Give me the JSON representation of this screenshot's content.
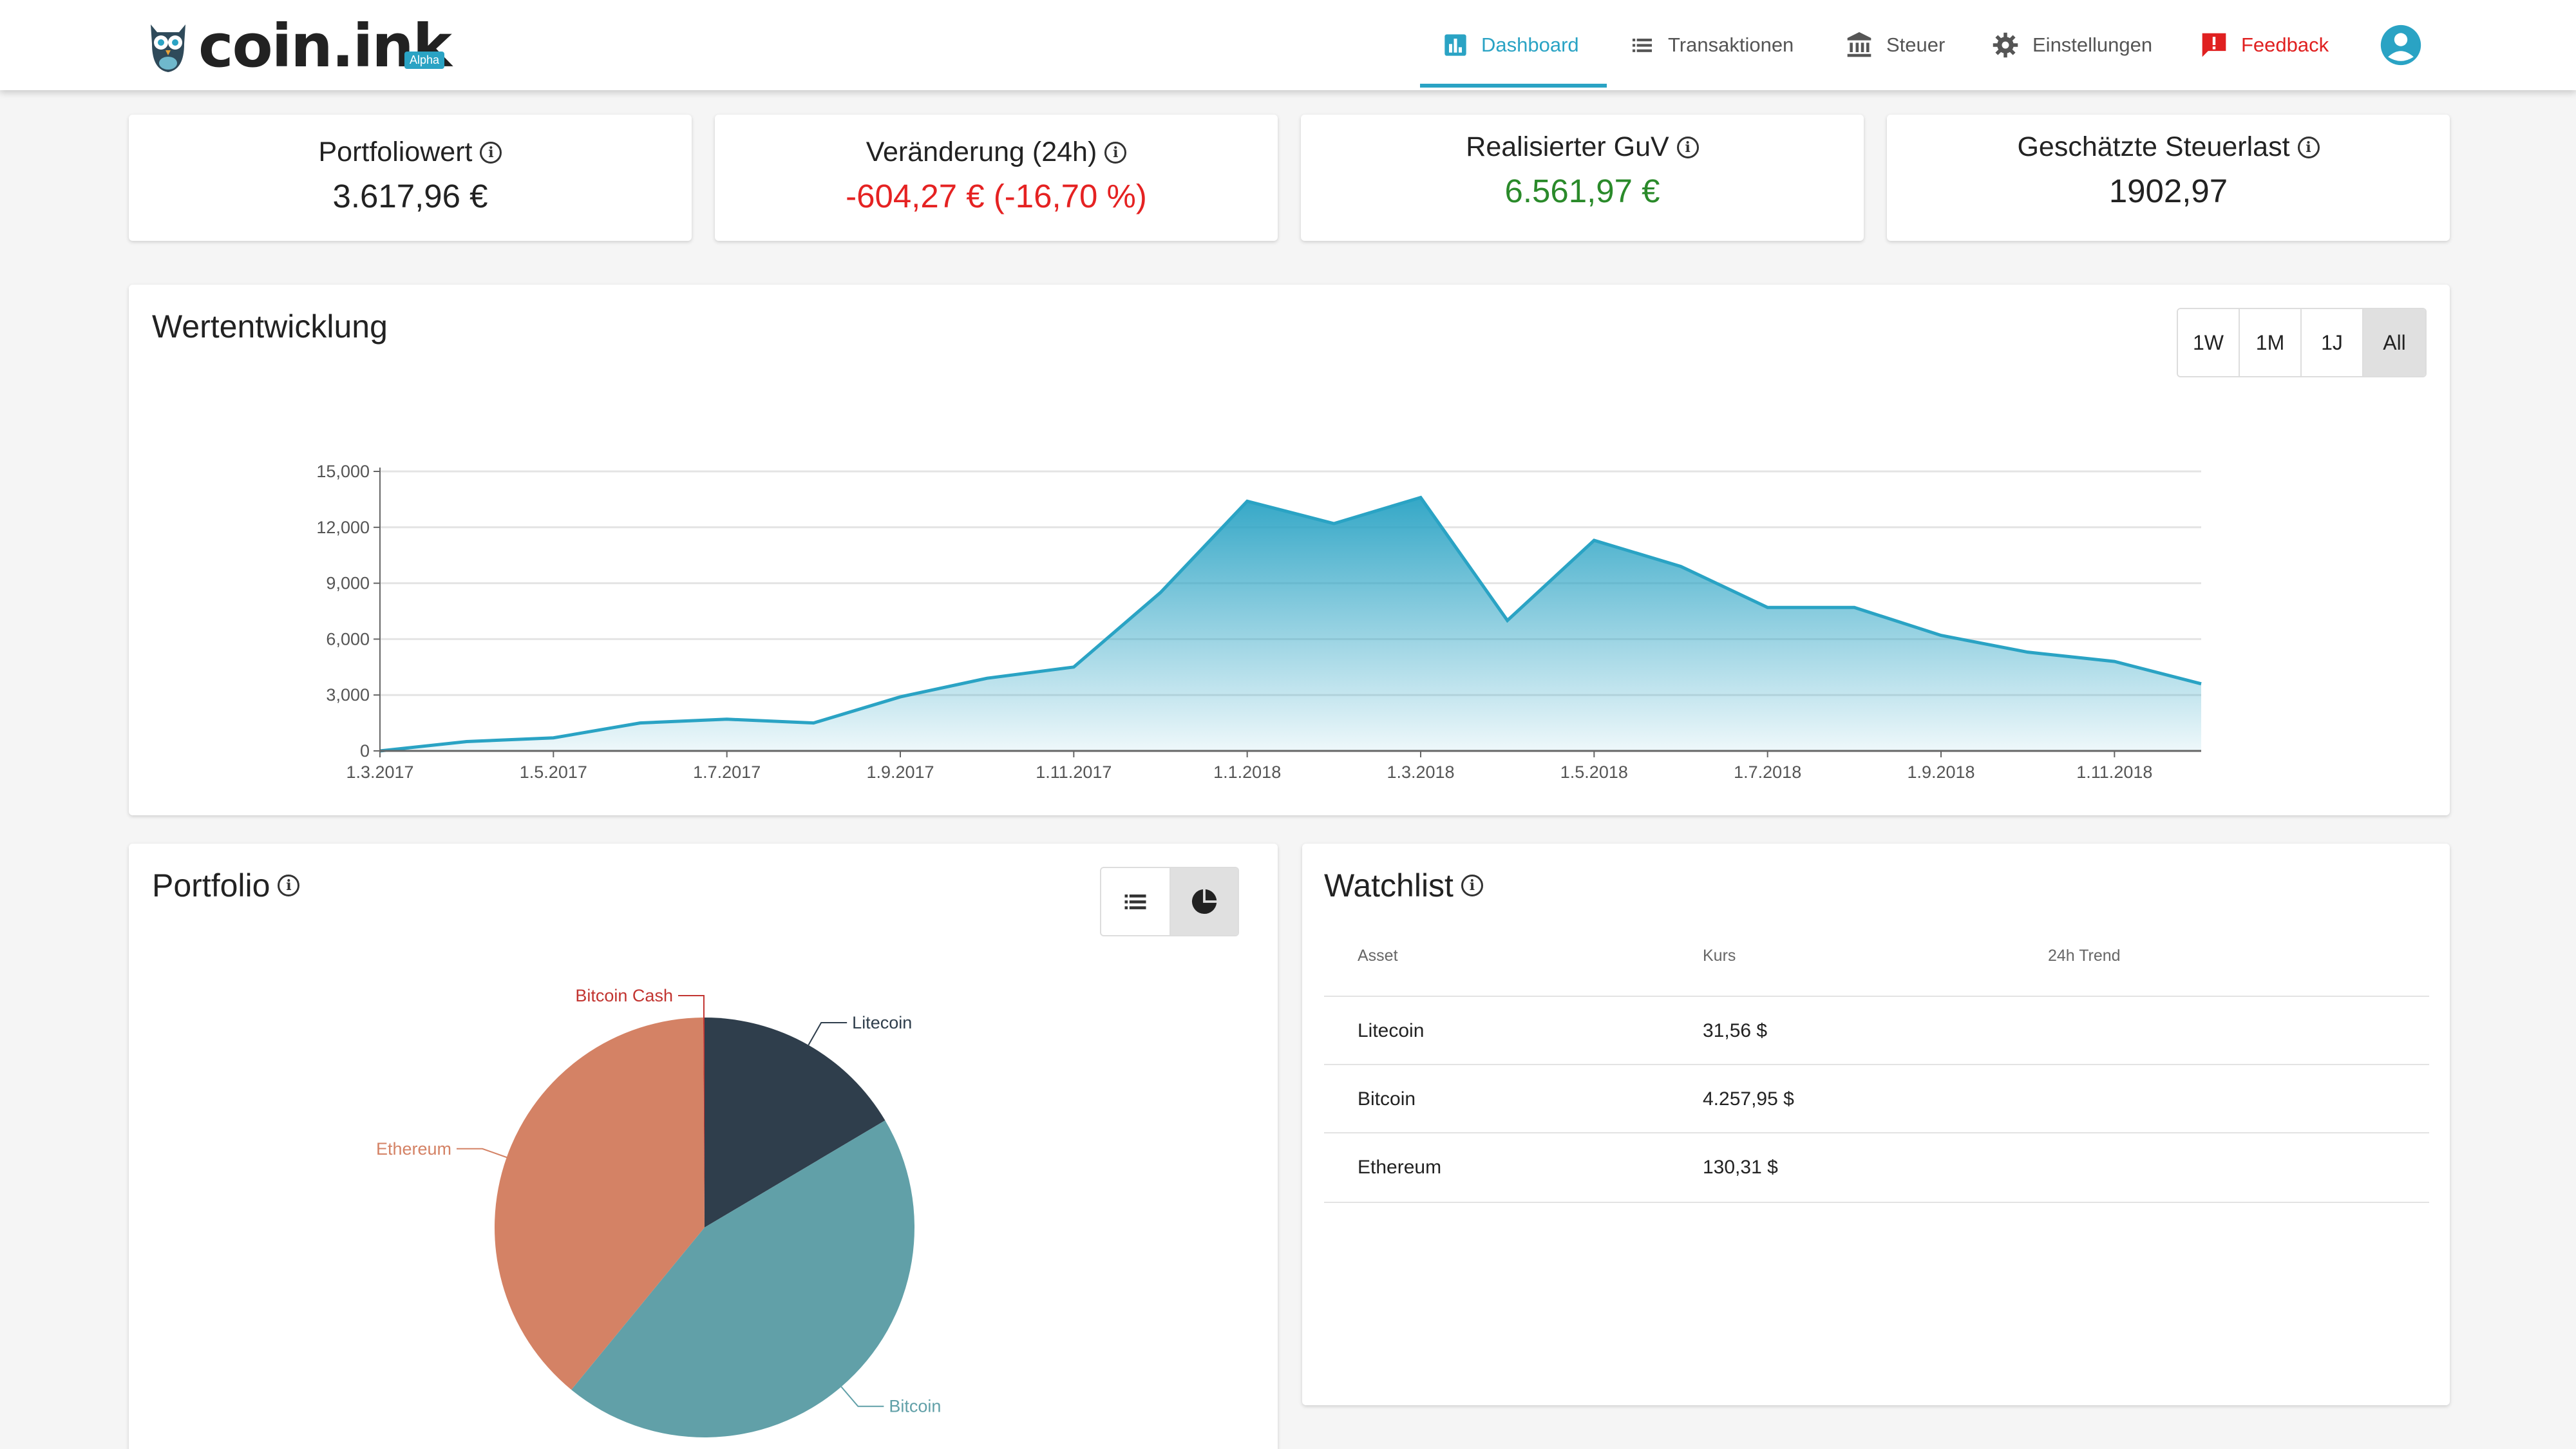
{
  "header": {
    "logo_text": "coin.ink",
    "logo_badge": "Alpha",
    "nav": [
      {
        "label": "Dashboard",
        "icon": "bar-chart-icon",
        "active": true
      },
      {
        "label": "Transaktionen",
        "icon": "list-icon"
      },
      {
        "label": "Steuer",
        "icon": "bank-icon"
      },
      {
        "label": "Einstellungen",
        "icon": "gear-icon"
      },
      {
        "label": "Feedback",
        "icon": "feedback-icon"
      }
    ],
    "account_icon": "account-circle-icon",
    "colors": {
      "accent": "#2aa3c4",
      "feedback": "#e02020"
    }
  },
  "kpis": [
    {
      "label": "Portfoliowert",
      "value": "3.617,96 €",
      "color": "#222222"
    },
    {
      "label": "Veränderung (24h)",
      "value": "-604,27 € (-16,70 %)",
      "color": "#e52222"
    },
    {
      "label": "Realisierter GuV",
      "value": "6.561,97 €",
      "color": "#2a8a2a"
    },
    {
      "label": "Geschätzte Steuerlast",
      "value": "1902,97",
      "color": "#222222"
    }
  ],
  "value_chart": {
    "title": "Wertentwicklung",
    "ranges": [
      "1W",
      "1M",
      "1J",
      "All"
    ],
    "active_range": "All"
  },
  "portfolio": {
    "title": "Portfolio",
    "view_icons": [
      "list-icon",
      "pie-chart-icon"
    ],
    "active_view": "pie"
  },
  "watchlist": {
    "title": "Watchlist",
    "columns": [
      "Asset",
      "Kurs",
      "24h Trend"
    ],
    "rows": [
      {
        "asset": "Litecoin",
        "price": "31,56 $"
      },
      {
        "asset": "Bitcoin",
        "price": "4.257,95 $"
      },
      {
        "asset": "Ethereum",
        "price": "130,31 $"
      }
    ]
  },
  "chart_data": [
    {
      "type": "area",
      "title": "Wertentwicklung",
      "xlabel": "",
      "ylabel": "",
      "ylim": [
        0,
        15000
      ],
      "yticks": [
        "0",
        "3,000",
        "6,000",
        "9,000",
        "12,000",
        "15,000"
      ],
      "xticks": [
        "1.3.2017",
        "1.5.2017",
        "1.7.2017",
        "1.9.2017",
        "1.11.2017",
        "1.1.2018",
        "1.3.2018",
        "1.5.2018",
        "1.7.2018",
        "1.9.2018",
        "1.11.2018"
      ],
      "x": [
        "1.3.2017",
        "1.4.2017",
        "1.5.2017",
        "1.6.2017",
        "1.7.2017",
        "1.8.2017",
        "1.9.2017",
        "1.10.2017",
        "1.11.2017",
        "1.12.2017",
        "1.1.2018",
        "1.2.2018",
        "1.3.2018",
        "1.4.2018",
        "1.5.2018",
        "1.6.2018",
        "1.7.2018",
        "1.8.2018",
        "1.9.2018",
        "1.10.2018",
        "1.11.2018",
        "1.12.2018"
      ],
      "values": [
        0,
        500,
        700,
        1500,
        1700,
        1500,
        2900,
        3900,
        4500,
        8500,
        13400,
        12200,
        13600,
        7000,
        11300,
        9900,
        7700,
        7700,
        6200,
        5300,
        4800,
        3600
      ],
      "grid": true,
      "color": "#2aa3c4"
    },
    {
      "type": "pie",
      "categories": [
        "Litecoin",
        "Bitcoin",
        "Ethereum",
        "Bitcoin Cash"
      ],
      "values": [
        16.5,
        44.5,
        39,
        0.1
      ],
      "colors": [
        "#2f3e4c",
        "#61a0a8",
        "#d48265",
        "#c23531"
      ]
    }
  ]
}
